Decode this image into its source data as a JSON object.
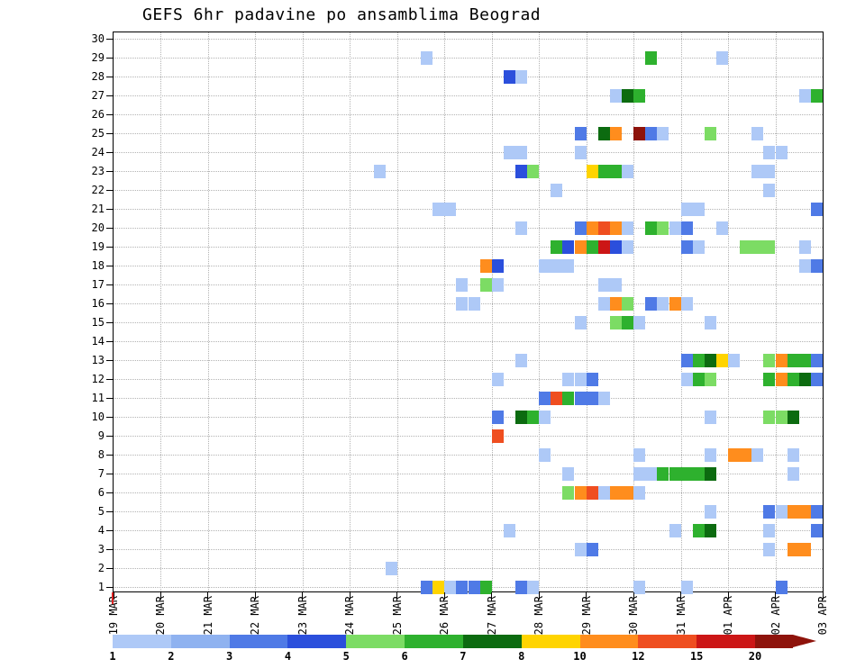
{
  "chart_data": {
    "type": "heatmap",
    "title": "GEFS 6hr padavine po ansamblima Beograd",
    "x_axis": {
      "tick_labels": [
        "19 MAR",
        "20 MAR",
        "21 MAR",
        "22 MAR",
        "23 MAR",
        "24 MAR",
        "25 MAR",
        "26 MAR",
        "27 MAR",
        "28 MAR",
        "29 MAR",
        "30 MAR",
        "31 MAR",
        "01 APR",
        "02 APR",
        "03 APR"
      ],
      "slots_per_day": 4
    },
    "y_axis": {
      "tick_labels": [
        "30",
        "29",
        "28",
        "27",
        "26",
        "25",
        "24",
        "23",
        "22",
        "21",
        "20",
        "19",
        "18",
        "17",
        "16",
        "15",
        "14",
        "13",
        "12",
        "11",
        "10",
        "9",
        "8",
        "7",
        "6",
        "5",
        "4",
        "3",
        "2",
        "1"
      ],
      "min": 1,
      "max": 30
    },
    "grid": "dotted",
    "time_marker": {
      "at_label": "19 MAR",
      "color": "#dd2222"
    },
    "legend": {
      "thresholds": [
        1,
        2,
        3,
        4,
        5,
        6,
        7,
        8,
        10,
        12,
        15,
        20
      ],
      "colors": [
        "#aec9f7",
        "#8fb2f0",
        "#4f7ae6",
        "#2b4fdc",
        "#7cdc64",
        "#2eb12e",
        "#0c6b10",
        "#ffd400",
        "#ff8d1d",
        "#ef4e20",
        "#cc1616",
        "#8e130b"
      ]
    },
    "cells": [
      [
        29,
        26,
        0
      ],
      [
        29,
        45,
        5
      ],
      [
        29,
        51,
        0
      ],
      [
        28,
        33,
        3
      ],
      [
        28,
        34,
        0
      ],
      [
        27,
        42,
        0
      ],
      [
        27,
        43,
        6
      ],
      [
        27,
        44,
        5
      ],
      [
        27,
        58,
        0
      ],
      [
        27,
        59,
        5
      ],
      [
        25,
        39,
        2
      ],
      [
        25,
        41,
        6
      ],
      [
        25,
        42,
        8
      ],
      [
        25,
        44,
        11
      ],
      [
        25,
        45,
        2
      ],
      [
        25,
        46,
        0
      ],
      [
        25,
        50,
        4
      ],
      [
        25,
        54,
        0
      ],
      [
        24,
        33,
        0
      ],
      [
        24,
        34,
        0
      ],
      [
        24,
        39,
        0
      ],
      [
        24,
        55,
        0
      ],
      [
        24,
        56,
        0
      ],
      [
        23,
        22,
        0
      ],
      [
        23,
        34,
        3
      ],
      [
        23,
        35,
        4
      ],
      [
        23,
        40,
        7
      ],
      [
        23,
        41,
        5
      ],
      [
        23,
        42,
        5
      ],
      [
        23,
        43,
        0
      ],
      [
        23,
        54,
        0
      ],
      [
        23,
        55,
        0
      ],
      [
        22,
        37,
        0
      ],
      [
        22,
        55,
        0
      ],
      [
        21,
        27,
        0
      ],
      [
        21,
        28,
        0
      ],
      [
        21,
        48,
        0
      ],
      [
        21,
        49,
        0
      ],
      [
        21,
        59,
        2
      ],
      [
        20,
        34,
        0
      ],
      [
        20,
        39,
        2
      ],
      [
        20,
        40,
        8
      ],
      [
        20,
        41,
        9
      ],
      [
        20,
        42,
        8
      ],
      [
        20,
        43,
        0
      ],
      [
        20,
        45,
        5
      ],
      [
        20,
        46,
        4
      ],
      [
        20,
        47,
        0
      ],
      [
        20,
        48,
        2
      ],
      [
        20,
        51,
        0
      ],
      [
        19,
        37,
        5
      ],
      [
        19,
        38,
        3
      ],
      [
        19,
        39,
        8
      ],
      [
        19,
        40,
        5
      ],
      [
        19,
        41,
        10
      ],
      [
        19,
        42,
        3
      ],
      [
        19,
        43,
        0
      ],
      [
        19,
        48,
        2
      ],
      [
        19,
        49,
        0
      ],
      [
        19,
        53,
        4
      ],
      [
        19,
        54,
        4
      ],
      [
        19,
        55,
        4
      ],
      [
        19,
        58,
        0
      ],
      [
        18,
        31,
        8
      ],
      [
        18,
        32,
        3
      ],
      [
        18,
        36,
        0
      ],
      [
        18,
        37,
        0
      ],
      [
        18,
        38,
        0
      ],
      [
        18,
        58,
        0
      ],
      [
        18,
        59,
        2
      ],
      [
        17,
        29,
        0
      ],
      [
        17,
        31,
        4
      ],
      [
        17,
        32,
        0
      ],
      [
        17,
        41,
        0
      ],
      [
        17,
        42,
        0
      ],
      [
        16,
        29,
        0
      ],
      [
        16,
        30,
        0
      ],
      [
        16,
        41,
        0
      ],
      [
        16,
        42,
        8
      ],
      [
        16,
        43,
        4
      ],
      [
        16,
        45,
        2
      ],
      [
        16,
        46,
        0
      ],
      [
        16,
        47,
        8
      ],
      [
        16,
        48,
        0
      ],
      [
        15,
        39,
        0
      ],
      [
        15,
        42,
        4
      ],
      [
        15,
        43,
        5
      ],
      [
        15,
        44,
        0
      ],
      [
        15,
        50,
        0
      ],
      [
        13,
        34,
        0
      ],
      [
        13,
        48,
        2
      ],
      [
        13,
        49,
        5
      ],
      [
        13,
        50,
        6
      ],
      [
        13,
        51,
        7
      ],
      [
        13,
        52,
        0
      ],
      [
        13,
        55,
        4
      ],
      [
        13,
        56,
        8
      ],
      [
        13,
        57,
        5
      ],
      [
        13,
        58,
        5
      ],
      [
        13,
        59,
        2
      ],
      [
        12,
        32,
        0
      ],
      [
        12,
        38,
        0
      ],
      [
        12,
        39,
        0
      ],
      [
        12,
        40,
        2
      ],
      [
        12,
        48,
        0
      ],
      [
        12,
        49,
        5
      ],
      [
        12,
        50,
        4
      ],
      [
        12,
        55,
        5
      ],
      [
        12,
        56,
        8
      ],
      [
        12,
        57,
        5
      ],
      [
        12,
        58,
        6
      ],
      [
        12,
        59,
        2
      ],
      [
        11,
        36,
        2
      ],
      [
        11,
        37,
        9
      ],
      [
        11,
        38,
        5
      ],
      [
        11,
        39,
        2
      ],
      [
        11,
        40,
        2
      ],
      [
        11,
        41,
        0
      ],
      [
        10,
        32,
        2
      ],
      [
        10,
        34,
        6
      ],
      [
        10,
        35,
        5
      ],
      [
        10,
        36,
        0
      ],
      [
        10,
        50,
        0
      ],
      [
        10,
        55,
        4
      ],
      [
        10,
        56,
        4
      ],
      [
        10,
        57,
        6
      ],
      [
        9,
        32,
        9
      ],
      [
        8,
        36,
        0
      ],
      [
        8,
        44,
        0
      ],
      [
        8,
        50,
        0
      ],
      [
        8,
        52,
        8
      ],
      [
        8,
        53,
        8
      ],
      [
        8,
        54,
        0
      ],
      [
        8,
        57,
        0
      ],
      [
        7,
        38,
        0
      ],
      [
        7,
        44,
        0
      ],
      [
        7,
        45,
        0
      ],
      [
        7,
        46,
        5
      ],
      [
        7,
        47,
        5
      ],
      [
        7,
        48,
        5
      ],
      [
        7,
        49,
        5
      ],
      [
        7,
        50,
        6
      ],
      [
        7,
        57,
        0
      ],
      [
        6,
        38,
        4
      ],
      [
        6,
        39,
        8
      ],
      [
        6,
        40,
        9
      ],
      [
        6,
        41,
        0
      ],
      [
        6,
        42,
        8
      ],
      [
        6,
        43,
        8
      ],
      [
        6,
        44,
        0
      ],
      [
        5,
        50,
        0
      ],
      [
        5,
        55,
        2
      ],
      [
        5,
        56,
        0
      ],
      [
        5,
        57,
        8
      ],
      [
        5,
        58,
        8
      ],
      [
        5,
        59,
        2
      ],
      [
        4,
        33,
        0
      ],
      [
        4,
        47,
        0
      ],
      [
        4,
        49,
        5
      ],
      [
        4,
        50,
        6
      ],
      [
        4,
        55,
        0
      ],
      [
        4,
        59,
        2
      ],
      [
        3,
        39,
        0
      ],
      [
        3,
        40,
        2
      ],
      [
        3,
        55,
        0
      ],
      [
        3,
        57,
        8
      ],
      [
        3,
        58,
        8
      ],
      [
        2,
        23,
        0
      ],
      [
        1,
        26,
        2
      ],
      [
        1,
        27,
        7
      ],
      [
        1,
        28,
        0
      ],
      [
        1,
        29,
        2
      ],
      [
        1,
        30,
        2
      ],
      [
        1,
        31,
        5
      ],
      [
        1,
        34,
        2
      ],
      [
        1,
        35,
        0
      ],
      [
        1,
        44,
        0
      ],
      [
        1,
        48,
        0
      ],
      [
        1,
        56,
        2
      ]
    ]
  }
}
